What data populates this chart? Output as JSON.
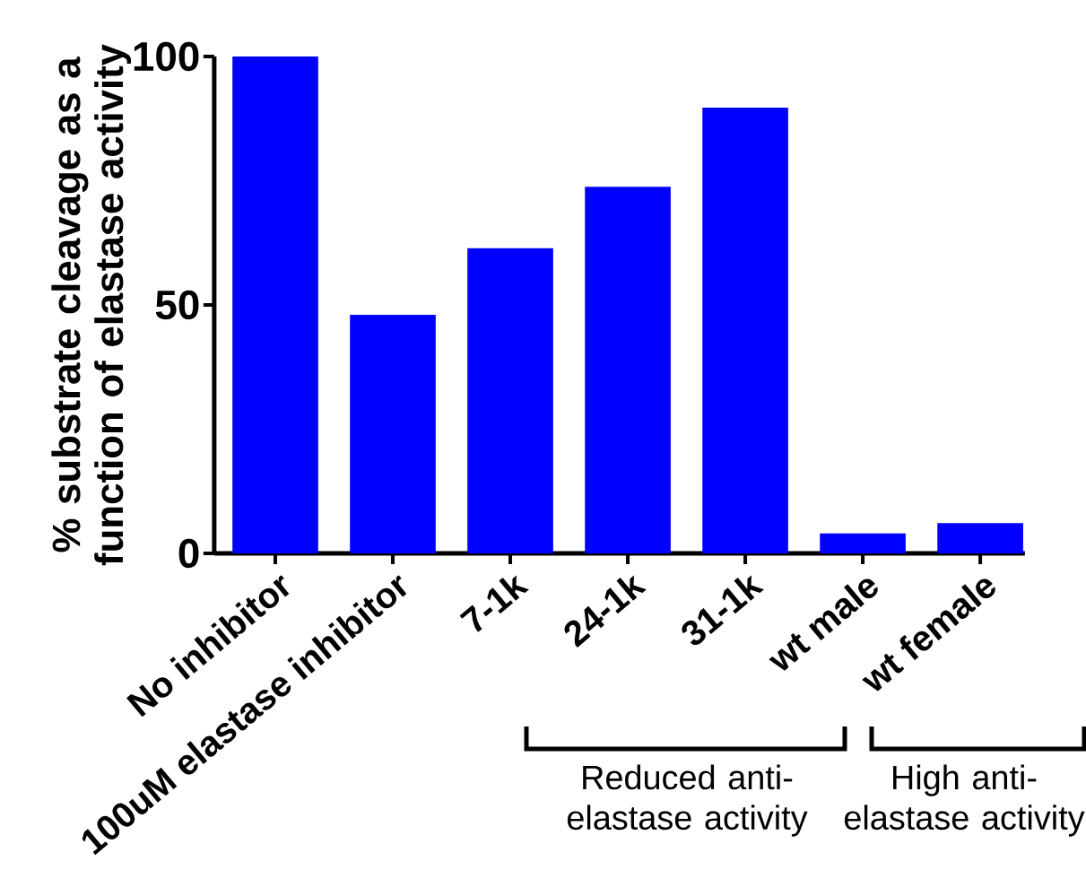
{
  "chart_data": {
    "type": "bar",
    "ylabel": "% substrate cleavage as a function of elastase activity",
    "categories": [
      "No inhibitor",
      "100uM elastase inhibitor",
      "7-1k",
      "24-1k",
      "31-1k",
      "wt male",
      "wt female"
    ],
    "values": [
      100,
      48,
      61.4,
      73.8,
      89.7,
      4,
      6.1
    ],
    "color": "#0000ff",
    "ylim": [
      0,
      100
    ],
    "yticks": [
      0,
      50,
      100
    ],
    "annotations": [
      "Reduced anti-elastase activity",
      "High anti-elastase activity"
    ]
  }
}
